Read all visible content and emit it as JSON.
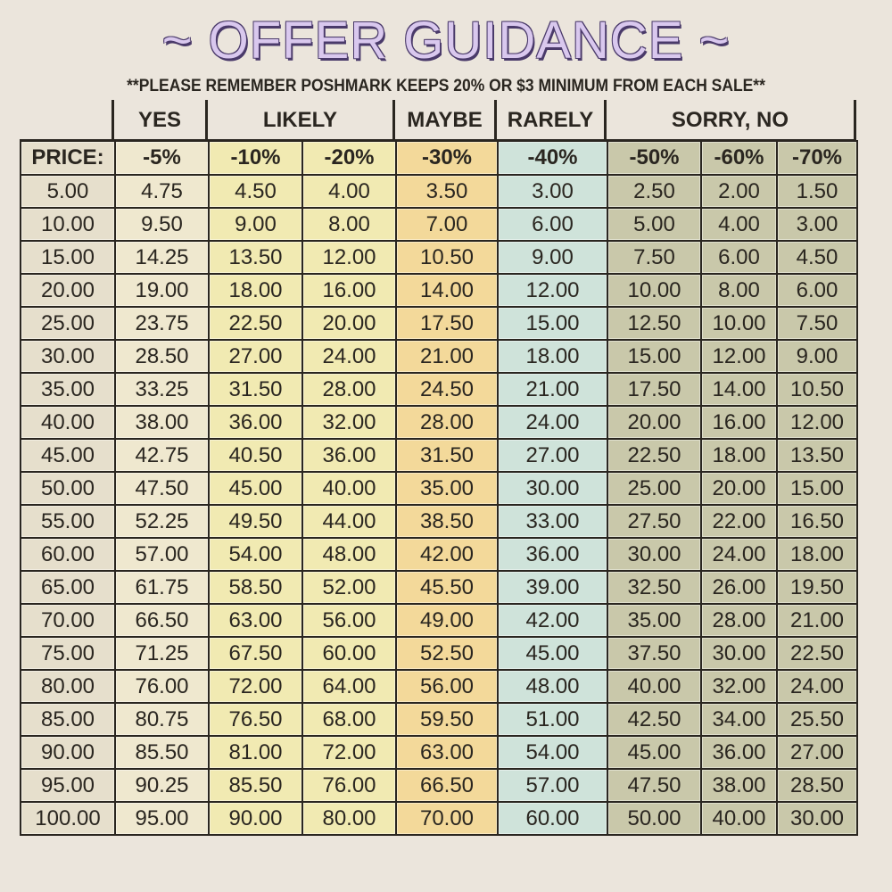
{
  "title": "~ OFFER GUIDANCE ~",
  "note": "**PLEASE REMEMBER POSHMARK KEEPS 20% OR $3 MINIMUM FROM EACH SALE**",
  "groups": [
    "YES",
    "LIKELY",
    "MAYBE",
    "RARELY",
    "SORRY, NO"
  ],
  "columns": [
    "PRICE:",
    "-5%",
    "-10%",
    "-20%",
    "-30%",
    "-40%",
    "-50%",
    "-60%",
    "-70%"
  ],
  "column_colors": [
    "#e6dfcc",
    "#efe8cf",
    "#f1eab2",
    "#f1eab2",
    "#f3d99a",
    "#cfe3da",
    "#c9c8aa",
    "#c9c8aa",
    "#c9c8aa"
  ],
  "rows": [
    [
      "5.00",
      "4.75",
      "4.50",
      "4.00",
      "3.50",
      "3.00",
      "2.50",
      "2.00",
      "1.50"
    ],
    [
      "10.00",
      "9.50",
      "9.00",
      "8.00",
      "7.00",
      "6.00",
      "5.00",
      "4.00",
      "3.00"
    ],
    [
      "15.00",
      "14.25",
      "13.50",
      "12.00",
      "10.50",
      "9.00",
      "7.50",
      "6.00",
      "4.50"
    ],
    [
      "20.00",
      "19.00",
      "18.00",
      "16.00",
      "14.00",
      "12.00",
      "10.00",
      "8.00",
      "6.00"
    ],
    [
      "25.00",
      "23.75",
      "22.50",
      "20.00",
      "17.50",
      "15.00",
      "12.50",
      "10.00",
      "7.50"
    ],
    [
      "30.00",
      "28.50",
      "27.00",
      "24.00",
      "21.00",
      "18.00",
      "15.00",
      "12.00",
      "9.00"
    ],
    [
      "35.00",
      "33.25",
      "31.50",
      "28.00",
      "24.50",
      "21.00",
      "17.50",
      "14.00",
      "10.50"
    ],
    [
      "40.00",
      "38.00",
      "36.00",
      "32.00",
      "28.00",
      "24.00",
      "20.00",
      "16.00",
      "12.00"
    ],
    [
      "45.00",
      "42.75",
      "40.50",
      "36.00",
      "31.50",
      "27.00",
      "22.50",
      "18.00",
      "13.50"
    ],
    [
      "50.00",
      "47.50",
      "45.00",
      "40.00",
      "35.00",
      "30.00",
      "25.00",
      "20.00",
      "15.00"
    ],
    [
      "55.00",
      "52.25",
      "49.50",
      "44.00",
      "38.50",
      "33.00",
      "27.50",
      "22.00",
      "16.50"
    ],
    [
      "60.00",
      "57.00",
      "54.00",
      "48.00",
      "42.00",
      "36.00",
      "30.00",
      "24.00",
      "18.00"
    ],
    [
      "65.00",
      "61.75",
      "58.50",
      "52.00",
      "45.50",
      "39.00",
      "32.50",
      "26.00",
      "19.50"
    ],
    [
      "70.00",
      "66.50",
      "63.00",
      "56.00",
      "49.00",
      "42.00",
      "35.00",
      "28.00",
      "21.00"
    ],
    [
      "75.00",
      "71.25",
      "67.50",
      "60.00",
      "52.50",
      "45.00",
      "37.50",
      "30.00",
      "22.50"
    ],
    [
      "80.00",
      "76.00",
      "72.00",
      "64.00",
      "56.00",
      "48.00",
      "40.00",
      "32.00",
      "24.00"
    ],
    [
      "85.00",
      "80.75",
      "76.50",
      "68.00",
      "59.50",
      "51.00",
      "42.50",
      "34.00",
      "25.50"
    ],
    [
      "90.00",
      "85.50",
      "81.00",
      "72.00",
      "63.00",
      "54.00",
      "45.00",
      "36.00",
      "27.00"
    ],
    [
      "95.00",
      "90.25",
      "85.50",
      "76.00",
      "66.50",
      "57.00",
      "47.50",
      "38.00",
      "28.50"
    ],
    [
      "100.00",
      "95.00",
      "90.00",
      "80.00",
      "70.00",
      "60.00",
      "50.00",
      "40.00",
      "30.00"
    ]
  ]
}
